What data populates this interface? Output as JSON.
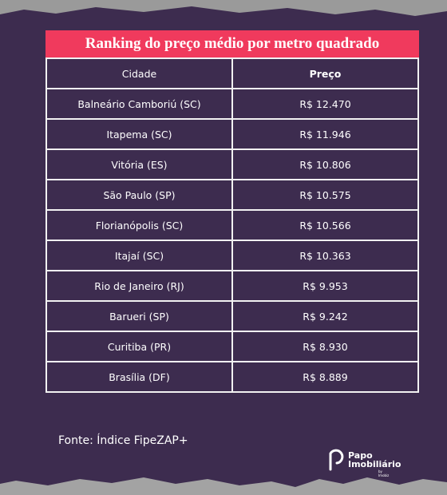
{
  "header": {
    "title": "Ranking do preço médio por metro quadrado"
  },
  "table": {
    "columns": [
      "Cidade",
      "Preço"
    ],
    "rows": [
      [
        "Balneário Camboriú (SC)",
        "R$ 12.470"
      ],
      [
        "Itapema (SC)",
        "R$ 11.946"
      ],
      [
        "Vitória (ES)",
        "R$ 10.806"
      ],
      [
        "São Paulo (SP)",
        "R$ 10.575"
      ],
      [
        "Florianópolis (SC)",
        "R$ 10.566"
      ],
      [
        "Itajaí (SC)",
        "R$ 10.363"
      ],
      [
        "Rio de Janeiro (RJ)",
        "R$ 9.953"
      ],
      [
        "Barueri (SP)",
        "R$ 9.242"
      ],
      [
        "Curitiba (PR)",
        "R$ 8.930"
      ],
      [
        "Brasília (DF)",
        "R$ 8.889"
      ]
    ]
  },
  "footer": {
    "source": "Fonte: Índice FipeZAP+",
    "logo_line1": "Papo",
    "logo_line2": "Imobiliário",
    "logo_tag": "by Imobiz"
  }
}
